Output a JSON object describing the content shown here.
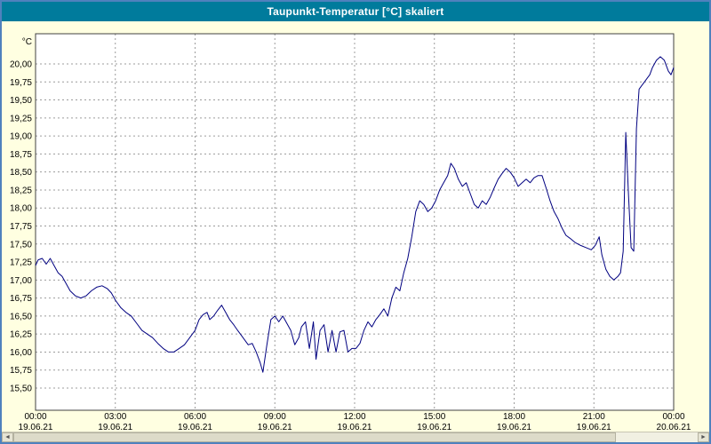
{
  "window": {
    "title": "Taupunkt-Temperatur [°C] skaliert"
  },
  "colors": {
    "title_bar": "#007b9c",
    "background": "#ffffe1",
    "window_border": "#4f81bd",
    "line": "#000080",
    "grid": "#9c9c9c",
    "plot_background": "#ffffff",
    "plot_border": "#404040"
  },
  "scrollbar": {
    "left_arrow": "◄",
    "right_arrow": "►"
  },
  "chart_data": {
    "type": "line",
    "title": "Taupunkt-Temperatur [°C] skaliert",
    "unit_label": "°C",
    "ylabel": "°C",
    "xlabel": "",
    "grid": "dashed",
    "legend": "none",
    "ylim": [
      15.5,
      20.0
    ],
    "y_tick_step": 0.25,
    "y_ticks": [
      "20,00",
      "19,75",
      "19,50",
      "19,25",
      "19,00",
      "18,75",
      "18,50",
      "18,25",
      "18,00",
      "17,75",
      "17,50",
      "17,25",
      "17,00",
      "16,75",
      "16,50",
      "16,25",
      "16,00",
      "15,75",
      "15,50"
    ],
    "xlim_hours": [
      0,
      24
    ],
    "x_ticks": [
      {
        "hour": 0,
        "time": "00:00",
        "date": "19.06.21"
      },
      {
        "hour": 3,
        "time": "03:00",
        "date": "19.06.21"
      },
      {
        "hour": 6,
        "time": "06:00",
        "date": "19.06.21"
      },
      {
        "hour": 9,
        "time": "09:00",
        "date": "19.06.21"
      },
      {
        "hour": 12,
        "time": "12:00",
        "date": "19.06.21"
      },
      {
        "hour": 15,
        "time": "15:00",
        "date": "19.06.21"
      },
      {
        "hour": 18,
        "time": "18:00",
        "date": "19.06.21"
      },
      {
        "hour": 21,
        "time": "21:00",
        "date": "19.06.21"
      },
      {
        "hour": 24,
        "time": "00:00",
        "date": "20.06.21"
      }
    ],
    "series": [
      {
        "name": "Taupunkt",
        "points": [
          [
            0,
            17.2
          ],
          [
            0.1,
            17.28
          ],
          [
            0.25,
            17.3
          ],
          [
            0.4,
            17.22
          ],
          [
            0.55,
            17.3
          ],
          [
            0.7,
            17.2
          ],
          [
            0.85,
            17.1
          ],
          [
            1,
            17.05
          ],
          [
            1.15,
            16.95
          ],
          [
            1.3,
            16.85
          ],
          [
            1.5,
            16.78
          ],
          [
            1.7,
            16.75
          ],
          [
            1.9,
            16.78
          ],
          [
            2.1,
            16.85
          ],
          [
            2.3,
            16.9
          ],
          [
            2.5,
            16.92
          ],
          [
            2.7,
            16.88
          ],
          [
            2.85,
            16.82
          ],
          [
            3,
            16.72
          ],
          [
            3.2,
            16.62
          ],
          [
            3.4,
            16.55
          ],
          [
            3.6,
            16.5
          ],
          [
            3.8,
            16.4
          ],
          [
            4,
            16.3
          ],
          [
            4.2,
            16.25
          ],
          [
            4.4,
            16.2
          ],
          [
            4.6,
            16.12
          ],
          [
            4.8,
            16.05
          ],
          [
            5,
            16.0
          ],
          [
            5.2,
            16.0
          ],
          [
            5.4,
            16.05
          ],
          [
            5.6,
            16.1
          ],
          [
            5.8,
            16.2
          ],
          [
            6,
            16.3
          ],
          [
            6.15,
            16.45
          ],
          [
            6.3,
            16.52
          ],
          [
            6.45,
            16.55
          ],
          [
            6.55,
            16.45
          ],
          [
            6.7,
            16.5
          ],
          [
            6.85,
            16.58
          ],
          [
            7,
            16.65
          ],
          [
            7.15,
            16.55
          ],
          [
            7.3,
            16.45
          ],
          [
            7.45,
            16.38
          ],
          [
            7.6,
            16.3
          ],
          [
            7.8,
            16.2
          ],
          [
            8,
            16.1
          ],
          [
            8.15,
            16.12
          ],
          [
            8.3,
            16.0
          ],
          [
            8.45,
            15.85
          ],
          [
            8.55,
            15.72
          ],
          [
            8.7,
            16.1
          ],
          [
            8.85,
            16.45
          ],
          [
            9,
            16.5
          ],
          [
            9.15,
            16.42
          ],
          [
            9.3,
            16.5
          ],
          [
            9.45,
            16.4
          ],
          [
            9.6,
            16.3
          ],
          [
            9.75,
            16.1
          ],
          [
            9.9,
            16.2
          ],
          [
            10,
            16.35
          ],
          [
            10.15,
            16.42
          ],
          [
            10.3,
            16.05
          ],
          [
            10.45,
            16.42
          ],
          [
            10.55,
            15.9
          ],
          [
            10.7,
            16.3
          ],
          [
            10.85,
            16.38
          ],
          [
            11,
            16.0
          ],
          [
            11.15,
            16.3
          ],
          [
            11.3,
            16.0
          ],
          [
            11.45,
            16.28
          ],
          [
            11.6,
            16.3
          ],
          [
            11.75,
            16.0
          ],
          [
            11.9,
            16.05
          ],
          [
            12.05,
            16.05
          ],
          [
            12.2,
            16.12
          ],
          [
            12.35,
            16.3
          ],
          [
            12.5,
            16.42
          ],
          [
            12.65,
            16.35
          ],
          [
            12.8,
            16.45
          ],
          [
            12.95,
            16.52
          ],
          [
            13.1,
            16.6
          ],
          [
            13.25,
            16.5
          ],
          [
            13.4,
            16.75
          ],
          [
            13.55,
            16.9
          ],
          [
            13.7,
            16.85
          ],
          [
            13.85,
            17.1
          ],
          [
            14,
            17.3
          ],
          [
            14.15,
            17.6
          ],
          [
            14.3,
            17.95
          ],
          [
            14.45,
            18.1
          ],
          [
            14.6,
            18.05
          ],
          [
            14.75,
            17.95
          ],
          [
            14.9,
            18.0
          ],
          [
            15.05,
            18.1
          ],
          [
            15.2,
            18.25
          ],
          [
            15.35,
            18.35
          ],
          [
            15.5,
            18.45
          ],
          [
            15.62,
            18.62
          ],
          [
            15.75,
            18.55
          ],
          [
            15.9,
            18.4
          ],
          [
            16.05,
            18.3
          ],
          [
            16.2,
            18.35
          ],
          [
            16.35,
            18.2
          ],
          [
            16.5,
            18.05
          ],
          [
            16.65,
            18.0
          ],
          [
            16.8,
            18.1
          ],
          [
            16.95,
            18.05
          ],
          [
            17.1,
            18.15
          ],
          [
            17.25,
            18.28
          ],
          [
            17.4,
            18.4
          ],
          [
            17.55,
            18.48
          ],
          [
            17.7,
            18.55
          ],
          [
            17.85,
            18.5
          ],
          [
            18,
            18.42
          ],
          [
            18.15,
            18.3
          ],
          [
            18.3,
            18.35
          ],
          [
            18.45,
            18.4
          ],
          [
            18.6,
            18.35
          ],
          [
            18.75,
            18.42
          ],
          [
            18.9,
            18.45
          ],
          [
            19.05,
            18.45
          ],
          [
            19.2,
            18.28
          ],
          [
            19.35,
            18.1
          ],
          [
            19.5,
            17.95
          ],
          [
            19.65,
            17.85
          ],
          [
            19.8,
            17.72
          ],
          [
            19.95,
            17.62
          ],
          [
            20.1,
            17.58
          ],
          [
            20.3,
            17.52
          ],
          [
            20.5,
            17.48
          ],
          [
            20.7,
            17.45
          ],
          [
            20.9,
            17.42
          ],
          [
            21.05,
            17.48
          ],
          [
            21.2,
            17.6
          ],
          [
            21.3,
            17.35
          ],
          [
            21.45,
            17.15
          ],
          [
            21.6,
            17.05
          ],
          [
            21.75,
            17.0
          ],
          [
            21.9,
            17.05
          ],
          [
            22,
            17.1
          ],
          [
            22.1,
            17.4
          ],
          [
            22.2,
            19.05
          ],
          [
            22.3,
            18.2
          ],
          [
            22.4,
            17.45
          ],
          [
            22.5,
            17.4
          ],
          [
            22.6,
            19.1
          ],
          [
            22.7,
            19.65
          ],
          [
            22.8,
            19.7
          ],
          [
            22.9,
            19.75
          ],
          [
            23,
            19.8
          ],
          [
            23.1,
            19.85
          ],
          [
            23.2,
            19.95
          ],
          [
            23.35,
            20.05
          ],
          [
            23.5,
            20.1
          ],
          [
            23.65,
            20.05
          ],
          [
            23.8,
            19.9
          ],
          [
            23.9,
            19.85
          ],
          [
            24,
            19.95
          ]
        ]
      }
    ]
  }
}
